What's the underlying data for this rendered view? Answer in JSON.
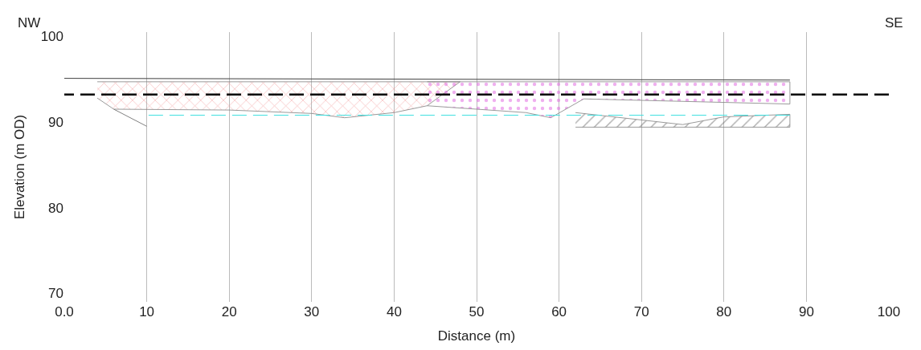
{
  "chart_data": {
    "type": "line",
    "xlabel": "Distance (m)",
    "ylabel": "Elevation (m OD)",
    "annotations": [
      "NW",
      "SE"
    ],
    "xlim": [
      0,
      100
    ],
    "ylim": [
      69,
      100.5
    ],
    "xticks": [
      {
        "value": 0,
        "label": "0.0"
      },
      10,
      20,
      30,
      40,
      50,
      60,
      70,
      80,
      90,
      100
    ],
    "yticks": [
      70,
      80,
      90,
      100
    ],
    "grid": "x",
    "legend": false,
    "marker": "none",
    "series": [
      {
        "type": "area",
        "color": "#f08080",
        "x": [
          4,
          44,
          48,
          44,
          40,
          34,
          30,
          20,
          6,
          4
        ],
        "values": [
          94.7,
          94.7,
          94.7,
          91.9,
          91.1,
          90.5,
          91.0,
          91.4,
          91.5,
          92.8
        ]
      },
      {
        "type": "area",
        "color": "#e060e0",
        "x": [
          44,
          88,
          88,
          63,
          59,
          56,
          44
        ],
        "values": [
          94.7,
          94.7,
          92.1,
          92.7,
          90.5,
          91.1,
          91.9
        ]
      },
      {
        "type": "area",
        "color": "#606060",
        "x": [
          62,
          75,
          80,
          88,
          88,
          62
        ],
        "values": [
          91.1,
          89.7,
          90.6,
          90.9,
          89.4,
          89.4
        ]
      },
      {
        "color": "#404040",
        "line_style": "solid",
        "x": [
          0,
          88
        ],
        "values": [
          95.1,
          94.9
        ]
      },
      {
        "color": "#808080",
        "line_style": "solid",
        "x": [
          6,
          10
        ],
        "values": [
          91.5,
          89.5
        ]
      },
      {
        "color": "#40e0e0",
        "line_style": "dashed",
        "x": [
          10,
          88
        ],
        "values": [
          90.8,
          90.8
        ]
      },
      {
        "color": "#000000",
        "line_style": "dashed",
        "x": [
          0,
          100
        ],
        "values": [
          93.2,
          93.2
        ]
      }
    ]
  }
}
